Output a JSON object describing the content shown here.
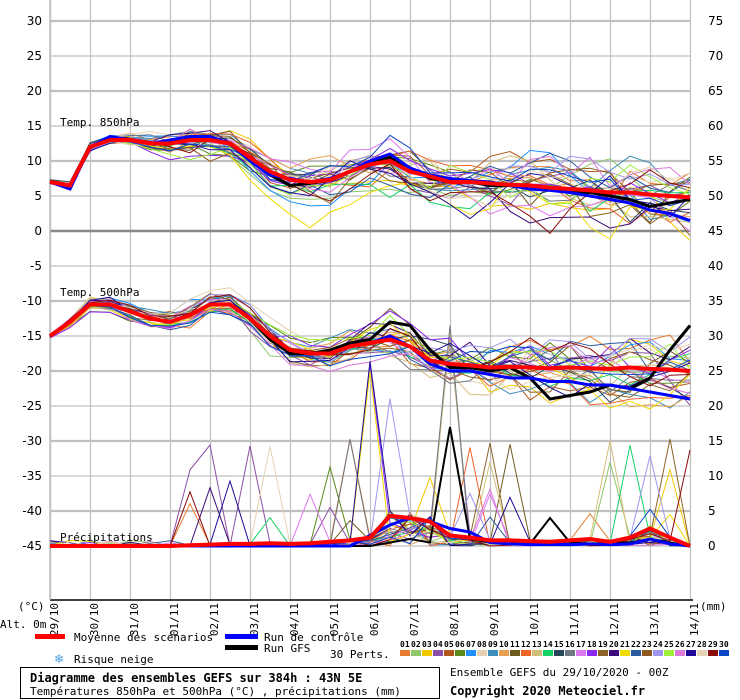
{
  "chart_data": {
    "type": "line",
    "title": "Diagramme des ensembles GEFS sur 384h : 43N 5E",
    "subtitle": "Températures 850hPa et 500hPa (°C) , précipitations (mm)",
    "run_info": "Ensemble GEFS du 29/10/2020 - 00Z",
    "copyright": "Copyright 2020 Meteociel.fr",
    "left_axis": {
      "unit": "(°C)",
      "alt": "Alt. 0m",
      "ticks": [
        "30",
        "25",
        "20",
        "15",
        "10",
        "5",
        "0",
        "-5",
        "-10",
        "-15",
        "-20",
        "-25",
        "-30",
        "-35",
        "-40",
        "-45"
      ],
      "range": [
        -45,
        30
      ]
    },
    "right_axis": {
      "unit": "(mm)",
      "ticks": [
        "75",
        "70",
        "65",
        "60",
        "55",
        "50",
        "45",
        "40",
        "35",
        "30",
        "25",
        "20",
        "15",
        "10",
        "5",
        "0"
      ]
    },
    "x_dates": [
      "29/10",
      "30/10",
      "31/10",
      "01/11",
      "02/11",
      "03/11",
      "04/11",
      "05/11",
      "06/11",
      "07/11",
      "08/11",
      "09/11",
      "10/11",
      "11/11",
      "12/11",
      "13/11",
      "14/11"
    ],
    "step_hours": 12,
    "panels": {
      "t850": {
        "label": "Temp. 850hPa",
        "mean": [
          7,
          6.5,
          12,
          13,
          13,
          12.5,
          12.5,
          13,
          13,
          12.5,
          10.5,
          8.5,
          7.3,
          7,
          7.3,
          8.5,
          9.5,
          10,
          8.5,
          7.8,
          7,
          7,
          6.8,
          6.6,
          6.5,
          6.2,
          6,
          5.8,
          5.5,
          5.5,
          5.2,
          5,
          4.8
        ],
        "control": [
          7,
          6,
          12,
          13.5,
          13,
          12.5,
          13,
          13.5,
          13.5,
          12.5,
          10,
          8,
          7.5,
          7,
          7.5,
          8.5,
          10,
          11,
          9,
          8,
          7.5,
          7.2,
          7,
          6.5,
          6,
          5.8,
          5.5,
          5,
          4.5,
          4,
          3,
          2.5,
          1.5
        ],
        "gfs": [
          7,
          6.3,
          12,
          13.2,
          13,
          12.5,
          12.8,
          13.2,
          13,
          12.4,
          10.5,
          8,
          6.5,
          6.8,
          7.2,
          8.5,
          9.8,
          10.5,
          9,
          7.5,
          7,
          7,
          6.5,
          6.5,
          6,
          6,
          5.5,
          5.5,
          5,
          4.5,
          3.5,
          4,
          4.5
        ],
        "spread": [
          0.3,
          0.4,
          0.6,
          0.7,
          0.8,
          1,
          1.2,
          1.5,
          1.5,
          1.5,
          1.6,
          1.8,
          2,
          2.2,
          2.2,
          2,
          2.2,
          2.4,
          2.4,
          2.4,
          2.5,
          2.6,
          2.6,
          2.8,
          3,
          3.2,
          3.4,
          3.5,
          3.5,
          3.5,
          3.6,
          3.6,
          3.6
        ]
      },
      "t500": {
        "label": "Temp. 500hPa",
        "mean": [
          -15,
          -13,
          -10.5,
          -10.5,
          -11.5,
          -12.5,
          -13,
          -12,
          -10.5,
          -10.5,
          -12.5,
          -15,
          -17,
          -17.5,
          -17.5,
          -16.5,
          -16,
          -15.5,
          -16.5,
          -18.5,
          -19,
          -19.2,
          -19.5,
          -19.4,
          -19.5,
          -19.6,
          -19.5,
          -19.6,
          -19.7,
          -19.5,
          -19.7,
          -19.8,
          -20
        ],
        "control": [
          -15,
          -13,
          -10.5,
          -10.5,
          -11.5,
          -12.5,
          -13,
          -12,
          -10.5,
          -10.5,
          -12.5,
          -15,
          -17,
          -17.5,
          -17.5,
          -16.5,
          -16,
          -15,
          -16.5,
          -19,
          -20,
          -20,
          -20.5,
          -21,
          -21,
          -21.5,
          -21.5,
          -22,
          -22,
          -22.5,
          -23,
          -23.5,
          -24
        ],
        "gfs": [
          -15,
          -13,
          -10.5,
          -10.5,
          -11.5,
          -12.5,
          -13,
          -12,
          -10.5,
          -10.5,
          -12.5,
          -15.5,
          -17.5,
          -17.5,
          -17,
          -16,
          -15.5,
          -13,
          -13.5,
          -17,
          -19.5,
          -19.5,
          -20,
          -19.5,
          -21,
          -24,
          -23.5,
          -23,
          -22,
          -22.5,
          -21,
          -17,
          -13.5
        ],
        "spread": [
          0.3,
          0.5,
          0.6,
          0.7,
          0.8,
          0.9,
          1,
          1.1,
          1.2,
          1.3,
          1.4,
          1.5,
          1.6,
          1.7,
          1.8,
          1.9,
          2,
          2.2,
          2.3,
          2.4,
          2.5,
          2.6,
          2.7,
          2.8,
          2.9,
          3,
          3.1,
          3.2,
          3.3,
          3.4,
          3.5,
          3.6,
          3.7
        ]
      },
      "precip": {
        "label": "Précipitations",
        "mean": [
          0,
          0,
          0,
          0,
          0,
          0,
          0,
          0.1,
          0.2,
          0.3,
          0.3,
          0.4,
          0.3,
          0.4,
          0.6,
          0.8,
          1.2,
          4.3,
          4,
          3.5,
          1.5,
          1.2,
          0.8,
          0.8,
          0.7,
          0.6,
          0.8,
          1,
          0.6,
          1.2,
          2.5,
          1.2,
          0
        ],
        "control": [
          0,
          0,
          0,
          0,
          0,
          0,
          0,
          0,
          0,
          0,
          0,
          0,
          0,
          0,
          0,
          0,
          1.5,
          3,
          4,
          3.5,
          2.5,
          2,
          0.5,
          0.3,
          0.2,
          0.2,
          0.2,
          0.3,
          0.2,
          0.3,
          1,
          0.3,
          0
        ],
        "gfs": [
          0,
          0,
          0,
          0,
          0,
          0,
          0,
          0,
          0,
          0,
          0,
          0,
          0,
          0,
          0,
          0,
          0,
          0.5,
          1,
          0.5,
          17,
          1,
          0.5,
          0.3,
          0.3,
          4,
          0.5,
          0.3,
          0.5,
          0.5,
          1,
          0.5,
          0
        ]
      }
    },
    "legend": {
      "mean": "Moyenne des scénarios",
      "control": "Run de contrôle",
      "gfs": "Run GFS",
      "snow": "Risque neige",
      "perts": "30 Perts.",
      "pert_ids": [
        "01",
        "02",
        "03",
        "04",
        "05",
        "06",
        "07",
        "08",
        "09",
        "10",
        "11",
        "12",
        "13",
        "14",
        "15",
        "16",
        "17",
        "18",
        "19",
        "20",
        "21",
        "22",
        "23",
        "24",
        "25",
        "26",
        "27",
        "28",
        "29",
        "30"
      ]
    },
    "colors": {
      "mean": "#ff0000",
      "control": "#0000ff",
      "gfs": "#000000",
      "perts": [
        "#e87d2f",
        "#8ec86a",
        "#f0c800",
        "#8c4fa8",
        "#b0561a",
        "#5a8a1a",
        "#1e90ff",
        "#e6d2b0",
        "#3c8cbe",
        "#e6a050",
        "#6e5a1e",
        "#f06428",
        "#d2be78",
        "#14d264",
        "#28465a",
        "#6e7882",
        "#dc78f0",
        "#8c28f0",
        "#8c6428",
        "#3c0a78",
        "#f0dc00",
        "#285aa0",
        "#8c5a1e",
        "#a096f0",
        "#a0f03c",
        "#dc78dc",
        "#1e0a96",
        "#e6d2b4",
        "#8c0a0a",
        "#0a46c8"
      ]
    }
  }
}
